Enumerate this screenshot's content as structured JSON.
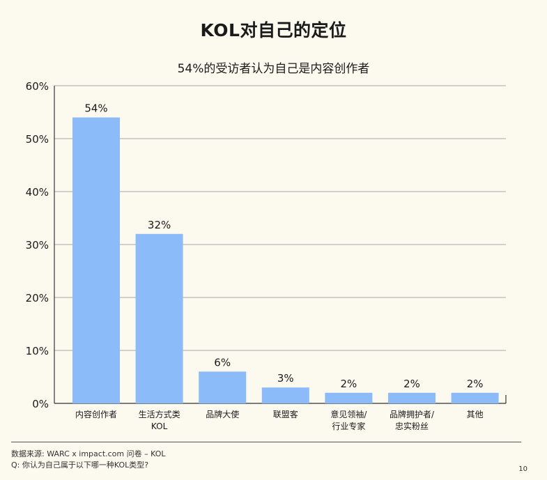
{
  "title": "KOL对自己的定位",
  "subtitle": "54%的受访者认为自己是内容创作者",
  "chart_data": {
    "type": "bar",
    "categories": [
      [
        "内容创作者"
      ],
      [
        "生活方式类",
        "KOL"
      ],
      [
        "品牌大使"
      ],
      [
        "联盟客"
      ],
      [
        "意见领袖/",
        "行业专家"
      ],
      [
        "品牌拥护者/",
        "忠实粉丝"
      ],
      [
        "其他"
      ]
    ],
    "values": [
      54,
      32,
      6,
      3,
      2,
      2,
      2
    ],
    "data_labels": [
      "54%",
      "32%",
      "6%",
      "3%",
      "2%",
      "2%",
      "2%"
    ],
    "ylim": [
      0,
      60
    ],
    "yticks": [
      "0%",
      "10%",
      "20%",
      "30%",
      "40%",
      "50%",
      "60%"
    ],
    "grid": true,
    "bar_color": "#8bbcf9"
  },
  "source_line1": "数据来源: WARC x impact.com 问卷 – KOL",
  "source_line2": "Q: 你认为自己属于以下哪一种KOL类型?",
  "page_number": "10"
}
